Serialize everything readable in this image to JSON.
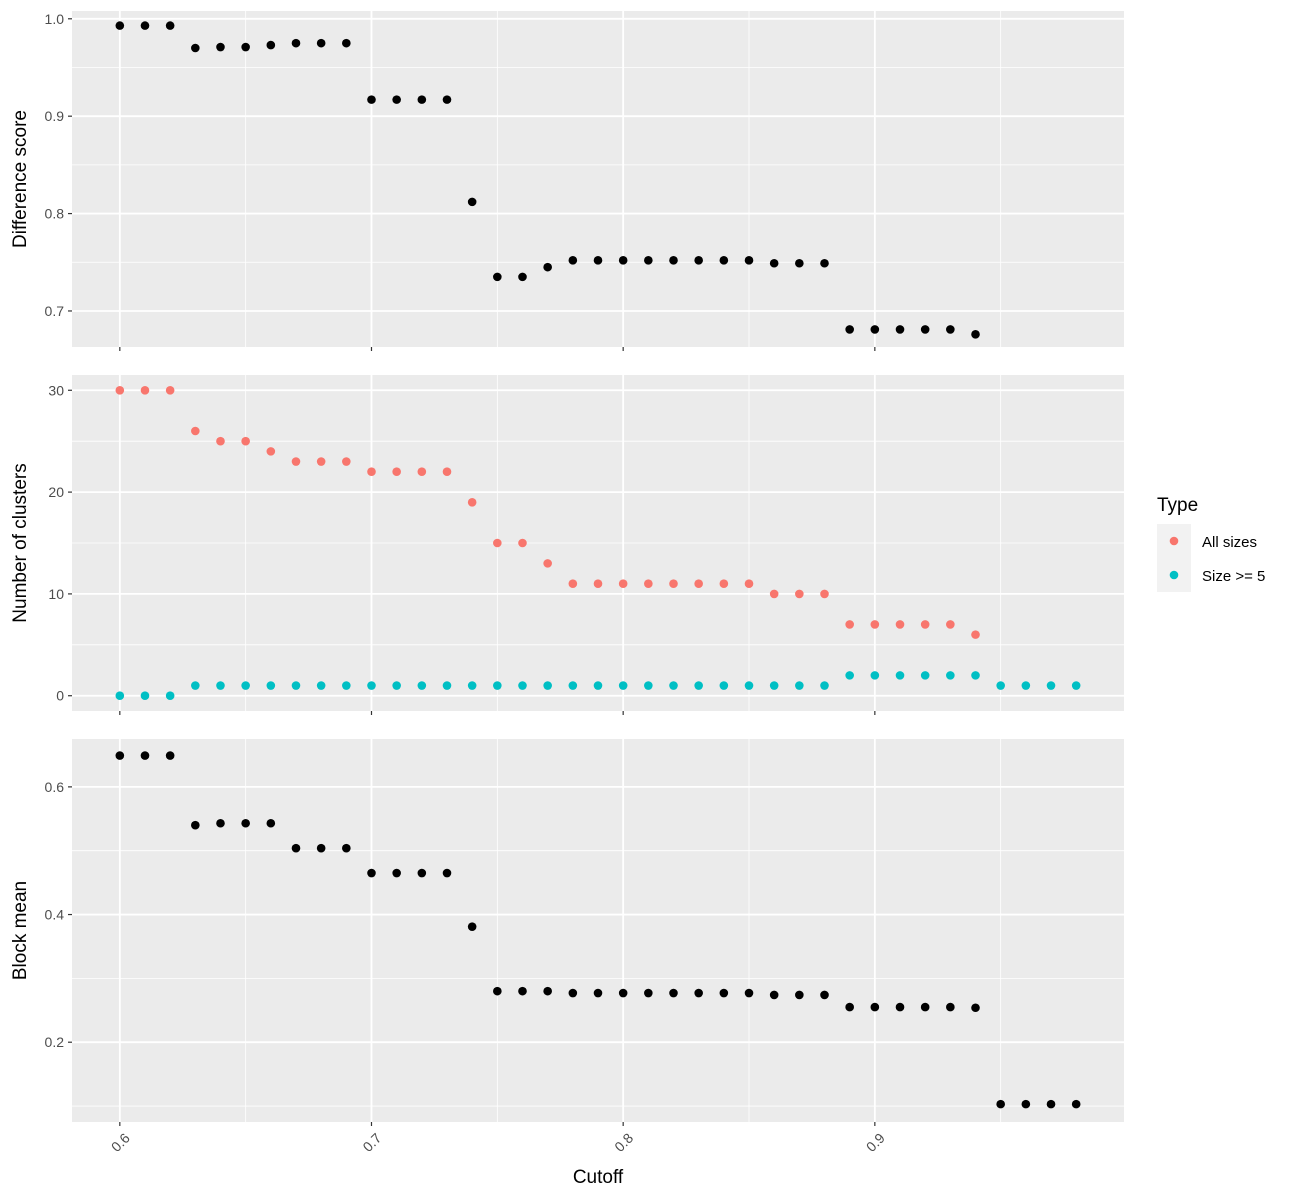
{
  "chart_data": [
    {
      "type": "scatter",
      "ylabel": "Difference score",
      "xlim": [
        0.581,
        0.999
      ],
      "ylim": [
        0.663,
        1.008
      ],
      "y_ticks": [
        "0.7",
        "0.8",
        "0.9",
        "1.0"
      ],
      "y_tick_values": [
        0.7,
        0.8,
        0.9,
        1.0
      ],
      "series": [
        {
          "color": "#000000",
          "points": [
            [
              0.6,
              0.993
            ],
            [
              0.61,
              0.993
            ],
            [
              0.62,
              0.993
            ],
            [
              0.63,
              0.97
            ],
            [
              0.64,
              0.971
            ],
            [
              0.65,
              0.971
            ],
            [
              0.66,
              0.973
            ],
            [
              0.67,
              0.975
            ],
            [
              0.68,
              0.975
            ],
            [
              0.69,
              0.975
            ],
            [
              0.7,
              0.917
            ],
            [
              0.71,
              0.917
            ],
            [
              0.72,
              0.917
            ],
            [
              0.73,
              0.917
            ],
            [
              0.74,
              0.812
            ],
            [
              0.75,
              0.735
            ],
            [
              0.76,
              0.735
            ],
            [
              0.77,
              0.745
            ],
            [
              0.78,
              0.752
            ],
            [
              0.79,
              0.752
            ],
            [
              0.8,
              0.752
            ],
            [
              0.81,
              0.752
            ],
            [
              0.82,
              0.752
            ],
            [
              0.83,
              0.752
            ],
            [
              0.84,
              0.752
            ],
            [
              0.85,
              0.752
            ],
            [
              0.86,
              0.749
            ],
            [
              0.87,
              0.749
            ],
            [
              0.88,
              0.749
            ],
            [
              0.89,
              0.681
            ],
            [
              0.9,
              0.681
            ],
            [
              0.91,
              0.681
            ],
            [
              0.92,
              0.681
            ],
            [
              0.93,
              0.681
            ],
            [
              0.94,
              0.676
            ]
          ]
        }
      ]
    },
    {
      "type": "scatter",
      "ylabel": "Number of clusters",
      "xlim": [
        0.581,
        0.999
      ],
      "ylim": [
        -1.5,
        31.5
      ],
      "y_ticks": [
        "0",
        "10",
        "20",
        "30"
      ],
      "y_tick_values": [
        0,
        10,
        20,
        30
      ],
      "series": [
        {
          "name": "All sizes",
          "color": "#F8766D",
          "points": [
            [
              0.6,
              30
            ],
            [
              0.61,
              30
            ],
            [
              0.62,
              30
            ],
            [
              0.63,
              26
            ],
            [
              0.64,
              25
            ],
            [
              0.65,
              25
            ],
            [
              0.66,
              24
            ],
            [
              0.67,
              23
            ],
            [
              0.68,
              23
            ],
            [
              0.69,
              23
            ],
            [
              0.7,
              22
            ],
            [
              0.71,
              22
            ],
            [
              0.72,
              22
            ],
            [
              0.73,
              22
            ],
            [
              0.74,
              19
            ],
            [
              0.75,
              15
            ],
            [
              0.76,
              15
            ],
            [
              0.77,
              13
            ],
            [
              0.78,
              11
            ],
            [
              0.79,
              11
            ],
            [
              0.8,
              11
            ],
            [
              0.81,
              11
            ],
            [
              0.82,
              11
            ],
            [
              0.83,
              11
            ],
            [
              0.84,
              11
            ],
            [
              0.85,
              11
            ],
            [
              0.86,
              10
            ],
            [
              0.87,
              10
            ],
            [
              0.88,
              10
            ],
            [
              0.89,
              7
            ],
            [
              0.9,
              7
            ],
            [
              0.91,
              7
            ],
            [
              0.92,
              7
            ],
            [
              0.93,
              7
            ],
            [
              0.94,
              6
            ]
          ]
        },
        {
          "name": "Size >= 5",
          "color": "#00BFC4",
          "points": [
            [
              0.6,
              0
            ],
            [
              0.61,
              0
            ],
            [
              0.62,
              0
            ],
            [
              0.63,
              1
            ],
            [
              0.64,
              1
            ],
            [
              0.65,
              1
            ],
            [
              0.66,
              1
            ],
            [
              0.67,
              1
            ],
            [
              0.68,
              1
            ],
            [
              0.69,
              1
            ],
            [
              0.7,
              1
            ],
            [
              0.71,
              1
            ],
            [
              0.72,
              1
            ],
            [
              0.73,
              1
            ],
            [
              0.74,
              1
            ],
            [
              0.75,
              1
            ],
            [
              0.76,
              1
            ],
            [
              0.77,
              1
            ],
            [
              0.78,
              1
            ],
            [
              0.79,
              1
            ],
            [
              0.8,
              1
            ],
            [
              0.81,
              1
            ],
            [
              0.82,
              1
            ],
            [
              0.83,
              1
            ],
            [
              0.84,
              1
            ],
            [
              0.85,
              1
            ],
            [
              0.86,
              1
            ],
            [
              0.87,
              1
            ],
            [
              0.88,
              1
            ],
            [
              0.89,
              2
            ],
            [
              0.9,
              2
            ],
            [
              0.91,
              2
            ],
            [
              0.92,
              2
            ],
            [
              0.93,
              2
            ],
            [
              0.94,
              2
            ],
            [
              0.95,
              1
            ],
            [
              0.96,
              1
            ],
            [
              0.97,
              1
            ],
            [
              0.98,
              1
            ]
          ]
        }
      ]
    },
    {
      "type": "scatter",
      "ylabel": "Block mean",
      "xlabel": "Cutoff",
      "xlim": [
        0.581,
        0.999
      ],
      "ylim": [
        0.075,
        0.675
      ],
      "y_ticks": [
        "0.2",
        "0.4",
        "0.6"
      ],
      "y_tick_values": [
        0.2,
        0.4,
        0.6
      ],
      "series": [
        {
          "color": "#000000",
          "points": [
            [
              0.6,
              0.649
            ],
            [
              0.61,
              0.649
            ],
            [
              0.62,
              0.649
            ],
            [
              0.63,
              0.54
            ],
            [
              0.64,
              0.543
            ],
            [
              0.65,
              0.543
            ],
            [
              0.66,
              0.543
            ],
            [
              0.67,
              0.504
            ],
            [
              0.68,
              0.504
            ],
            [
              0.69,
              0.504
            ],
            [
              0.7,
              0.465
            ],
            [
              0.71,
              0.465
            ],
            [
              0.72,
              0.465
            ],
            [
              0.73,
              0.465
            ],
            [
              0.74,
              0.381
            ],
            [
              0.75,
              0.28
            ],
            [
              0.76,
              0.28
            ],
            [
              0.77,
              0.28
            ],
            [
              0.78,
              0.277
            ],
            [
              0.79,
              0.277
            ],
            [
              0.8,
              0.277
            ],
            [
              0.81,
              0.277
            ],
            [
              0.82,
              0.277
            ],
            [
              0.83,
              0.277
            ],
            [
              0.84,
              0.277
            ],
            [
              0.85,
              0.277
            ],
            [
              0.86,
              0.274
            ],
            [
              0.87,
              0.274
            ],
            [
              0.88,
              0.274
            ],
            [
              0.89,
              0.255
            ],
            [
              0.9,
              0.255
            ],
            [
              0.91,
              0.255
            ],
            [
              0.92,
              0.255
            ],
            [
              0.93,
              0.255
            ],
            [
              0.94,
              0.254
            ],
            [
              0.95,
              0.103
            ],
            [
              0.96,
              0.103
            ],
            [
              0.97,
              0.103
            ],
            [
              0.98,
              0.103
            ]
          ]
        }
      ]
    }
  ],
  "x_axis": {
    "ticks": [
      "0.6",
      "0.7",
      "0.8",
      "0.9"
    ],
    "tick_values": [
      0.6,
      0.7,
      0.8,
      0.9
    ],
    "label": "Cutoff"
  },
  "legend": {
    "title": "Type",
    "placement": "right",
    "items": [
      {
        "label": "All sizes",
        "color": "#F8766D"
      },
      {
        "label": "Size >= 5",
        "color": "#00BFC4"
      }
    ]
  },
  "style": {
    "panel_background": "#EBEBEB",
    "grid_color": "#FFFFFF",
    "legend_key_background": "#F2F2F2"
  }
}
